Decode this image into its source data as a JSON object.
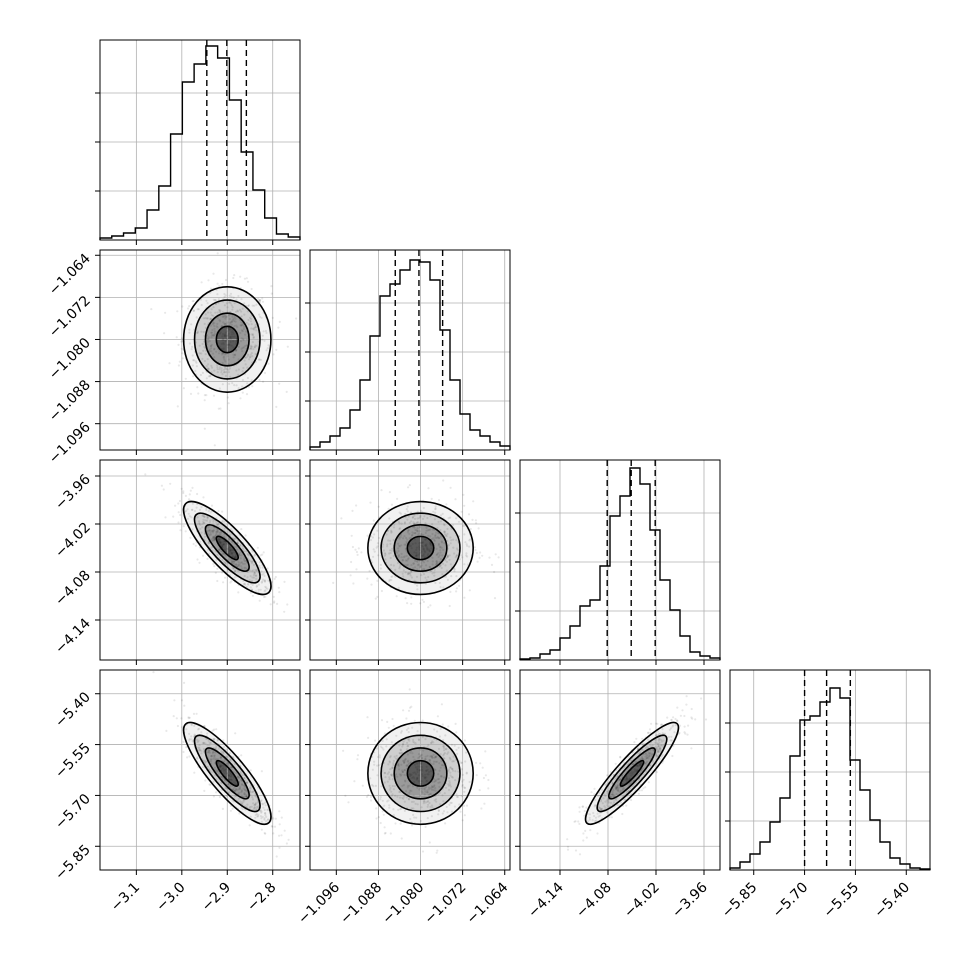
{
  "chart_data": {
    "type": "corner",
    "parameters": [
      {
        "range": [
          -3.18,
          -2.74
        ],
        "ticks": [
          -3.1,
          -3.0,
          -2.9,
          -2.8
        ],
        "tick_labels": [
          "−3.1",
          "−3.0",
          "−2.9",
          "−2.8"
        ],
        "mean": -2.9,
        "sd": 0.048
      },
      {
        "range": [
          -1.101,
          -1.063
        ],
        "ticks": [
          -1.096,
          -1.088,
          -1.08,
          -1.072,
          -1.064
        ],
        "tick_labels": [
          "−1.096",
          "−1.088",
          "−1.080",
          "−1.072",
          "−1.064"
        ],
        "mean": -1.08,
        "sd": 0.005
      },
      {
        "range": [
          -4.19,
          -3.94
        ],
        "ticks": [
          -4.14,
          -4.08,
          -4.02,
          -3.96
        ],
        "tick_labels": [
          "−4.14",
          "−4.08",
          "−4.02",
          "−3.96"
        ],
        "mean": -4.05,
        "sd": 0.029
      },
      {
        "range": [
          -5.92,
          -5.33
        ],
        "ticks": [
          -5.85,
          -5.7,
          -5.55,
          -5.4
        ],
        "tick_labels": [
          "−5.85",
          "−5.70",
          "−5.55",
          "−5.40"
        ],
        "mean": -5.635,
        "sd": 0.075
      }
    ],
    "quantiles": [
      {
        "q16": -2.945,
        "q50": -2.901,
        "q84": -2.858
      },
      {
        "q16": -1.0848,
        "q50": -1.0803,
        "q84": -1.0758
      },
      {
        "q16": -4.081,
        "q50": -4.051,
        "q84": -4.021
      },
      {
        "q16": -5.7,
        "q50": -5.635,
        "q84": -5.565
      }
    ],
    "histograms": [
      {
        "counts": [
          0.01,
          0.02,
          0.035,
          0.06,
          0.15,
          0.27,
          0.53,
          0.79,
          0.88,
          0.97,
          0.91,
          0.7,
          0.44,
          0.25,
          0.11,
          0.03,
          0.015
        ]
      },
      {
        "counts": [
          0.015,
          0.04,
          0.07,
          0.11,
          0.2,
          0.35,
          0.57,
          0.77,
          0.83,
          0.9,
          0.95,
          0.94,
          0.85,
          0.6,
          0.35,
          0.18,
          0.1,
          0.07,
          0.04,
          0.02
        ]
      },
      {
        "counts": [
          0.005,
          0.01,
          0.03,
          0.05,
          0.11,
          0.17,
          0.27,
          0.3,
          0.47,
          0.72,
          0.82,
          0.96,
          0.88,
          0.65,
          0.4,
          0.25,
          0.12,
          0.04,
          0.02,
          0.01
        ]
      },
      {
        "counts": [
          0.01,
          0.04,
          0.08,
          0.14,
          0.24,
          0.36,
          0.57,
          0.75,
          0.77,
          0.84,
          0.91,
          0.86,
          0.55,
          0.4,
          0.25,
          0.14,
          0.06,
          0.03,
          0.01,
          0.005
        ]
      }
    ],
    "correlations": [
      [
        1,
        0,
        -0.82,
        -0.85
      ],
      [
        0,
        1,
        0,
        0
      ],
      [
        -0.82,
        0,
        1,
        0.9
      ],
      [
        -0.85,
        0,
        0.9,
        1
      ]
    ],
    "density_levels": [
      0.118,
      0.393,
      0.675,
      0.865
    ],
    "grid": true
  }
}
